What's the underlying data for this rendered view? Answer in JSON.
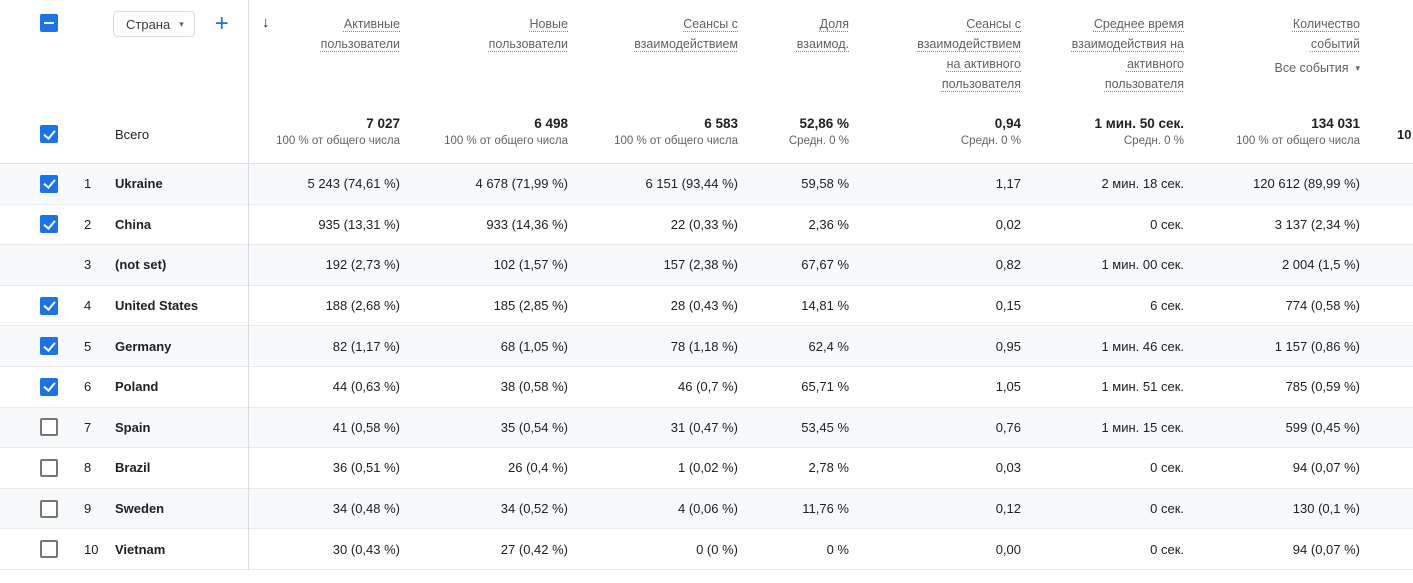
{
  "icons": {
    "sort_descending": "↓",
    "chevron_down": "▾",
    "add": "+"
  },
  "colors": {
    "accent_blue": "#1a73e8",
    "header_text": "#5f6368",
    "body_text": "#202124",
    "row_alt_background": "#f8f9fa",
    "border": "#dadce0"
  },
  "toolbar": {
    "dimension_selector": {
      "label": "Страна"
    },
    "select_all_state": "indeterminate"
  },
  "table": {
    "sort": {
      "column": "Активные пользователи",
      "direction": "descending"
    },
    "columns": [
      {
        "title": "Активные пользователи"
      },
      {
        "title": "Новые пользователи"
      },
      {
        "title": "Сеансы с взаимодействием"
      },
      {
        "title": "Доля взаимод."
      },
      {
        "title": "Сеансы с взаимодействием на активного пользователя"
      },
      {
        "title": "Среднее время взаимодействия на активного пользователя"
      },
      {
        "title": "Количество событий",
        "filter": "Все события"
      }
    ],
    "totals": {
      "label": "Всего",
      "checkbox": "checked",
      "values": [
        {
          "main": "7 027",
          "sub": "100 % от общего числа"
        },
        {
          "main": "6 498",
          "sub": "100 % от общего числа"
        },
        {
          "main": "6 583",
          "sub": "100 % от общего числа"
        },
        {
          "main": "52,86 %",
          "sub": "Средн. 0 %"
        },
        {
          "main": "0,94",
          "sub": "Средн. 0 %"
        },
        {
          "main": "1 мин. 50 сек.",
          "sub": "Средн. 0 %"
        },
        {
          "main": "134 031",
          "sub": "100 % от общего числа"
        }
      ],
      "clipped": "10"
    },
    "rows": [
      {
        "rank": "1",
        "country": "Ukraine",
        "checkbox": "checked",
        "values": [
          "5 243 (74,61 %)",
          "4 678 (71,99 %)",
          "6 151 (93,44 %)",
          "59,58 %",
          "1,17",
          "2 мин. 18 сек.",
          "120 612 (89,99 %)"
        ]
      },
      {
        "rank": "2",
        "country": "China",
        "checkbox": "checked",
        "values": [
          "935 (13,31 %)",
          "933 (14,36 %)",
          "22 (0,33 %)",
          "2,36 %",
          "0,02",
          "0 сек.",
          "3 137 (2,34 %)"
        ]
      },
      {
        "rank": "3",
        "country": "(not set)",
        "checkbox": "none",
        "values": [
          "192 (2,73 %)",
          "102 (1,57 %)",
          "157 (2,38 %)",
          "67,67 %",
          "0,82",
          "1 мин. 00 сек.",
          "2 004 (1,5 %)"
        ]
      },
      {
        "rank": "4",
        "country": "United States",
        "checkbox": "checked",
        "values": [
          "188 (2,68 %)",
          "185 (2,85 %)",
          "28 (0,43 %)",
          "14,81 %",
          "0,15",
          "6 сек.",
          "774 (0,58 %)"
        ]
      },
      {
        "rank": "5",
        "country": "Germany",
        "checkbox": "checked",
        "values": [
          "82 (1,17 %)",
          "68 (1,05 %)",
          "78 (1,18 %)",
          "62,4 %",
          "0,95",
          "1 мин. 46 сек.",
          "1 157 (0,86 %)"
        ]
      },
      {
        "rank": "6",
        "country": "Poland",
        "checkbox": "checked",
        "values": [
          "44 (0,63 %)",
          "38 (0,58 %)",
          "46 (0,7 %)",
          "65,71 %",
          "1,05",
          "1 мин. 51 сек.",
          "785 (0,59 %)"
        ]
      },
      {
        "rank": "7",
        "country": "Spain",
        "checkbox": "unchecked",
        "values": [
          "41 (0,58 %)",
          "35 (0,54 %)",
          "31 (0,47 %)",
          "53,45 %",
          "0,76",
          "1 мин. 15 сек.",
          "599 (0,45 %)"
        ]
      },
      {
        "rank": "8",
        "country": "Brazil",
        "checkbox": "unchecked",
        "values": [
          "36 (0,51 %)",
          "26 (0,4 %)",
          "1 (0,02 %)",
          "2,78 %",
          "0,03",
          "0 сек.",
          "94 (0,07 %)"
        ]
      },
      {
        "rank": "9",
        "country": "Sweden",
        "checkbox": "unchecked",
        "values": [
          "34 (0,48 %)",
          "34 (0,52 %)",
          "4 (0,06 %)",
          "11,76 %",
          "0,12",
          "0 сек.",
          "130 (0,1 %)"
        ]
      },
      {
        "rank": "10",
        "country": "Vietnam",
        "checkbox": "unchecked",
        "values": [
          "30 (0,43 %)",
          "27 (0,42 %)",
          "0 (0 %)",
          "0 %",
          "0,00",
          "0 сек.",
          "94 (0,07 %)"
        ]
      }
    ]
  }
}
